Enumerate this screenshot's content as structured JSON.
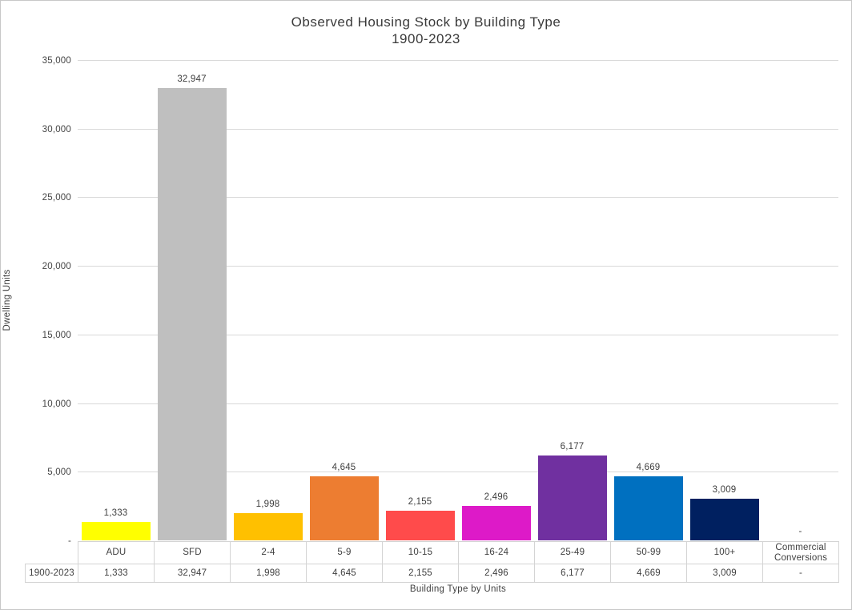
{
  "title": {
    "line1": "Observed Housing Stock by Building Type",
    "line2": "1900-2023"
  },
  "chart_data": {
    "type": "bar",
    "title": "Observed Housing Stock by Building Type 1900-2023",
    "xlabel": "Building Type by Units",
    "ylabel": "Dwelling Units",
    "categories": [
      "ADU",
      "SFD",
      "2-4",
      "5-9",
      "10-15",
      "16-24",
      "25-49",
      "50-99",
      "100+",
      "Commercial Conversions"
    ],
    "series": [
      {
        "name": "1900-2023",
        "values": [
          1333,
          32947,
          1998,
          4645,
          2155,
          2496,
          6177,
          4669,
          3009,
          null
        ]
      }
    ],
    "value_labels": [
      "1,333",
      "32,947",
      "1,998",
      "4,645",
      "2,155",
      "2,496",
      "6,177",
      "4,669",
      "3,009",
      "-"
    ],
    "bar_colors": [
      "#FFFF00",
      "#BFBFBF",
      "#FFC000",
      "#ED7D31",
      "#FF4B4B",
      "#DD1AC8",
      "#7030A0",
      "#0070C0",
      "#002060",
      null
    ],
    "ylim": [
      0,
      35000
    ],
    "ytick_interval": 5000,
    "ytick_labels": [
      "-",
      "5,000",
      "10,000",
      "15,000",
      "20,000",
      "25,000",
      "30,000",
      "35,000"
    ],
    "grid": true,
    "gridline_color": "#D9D9D9",
    "axis_line_color": "#BFBFBF",
    "legend_position": "table-bottom"
  }
}
